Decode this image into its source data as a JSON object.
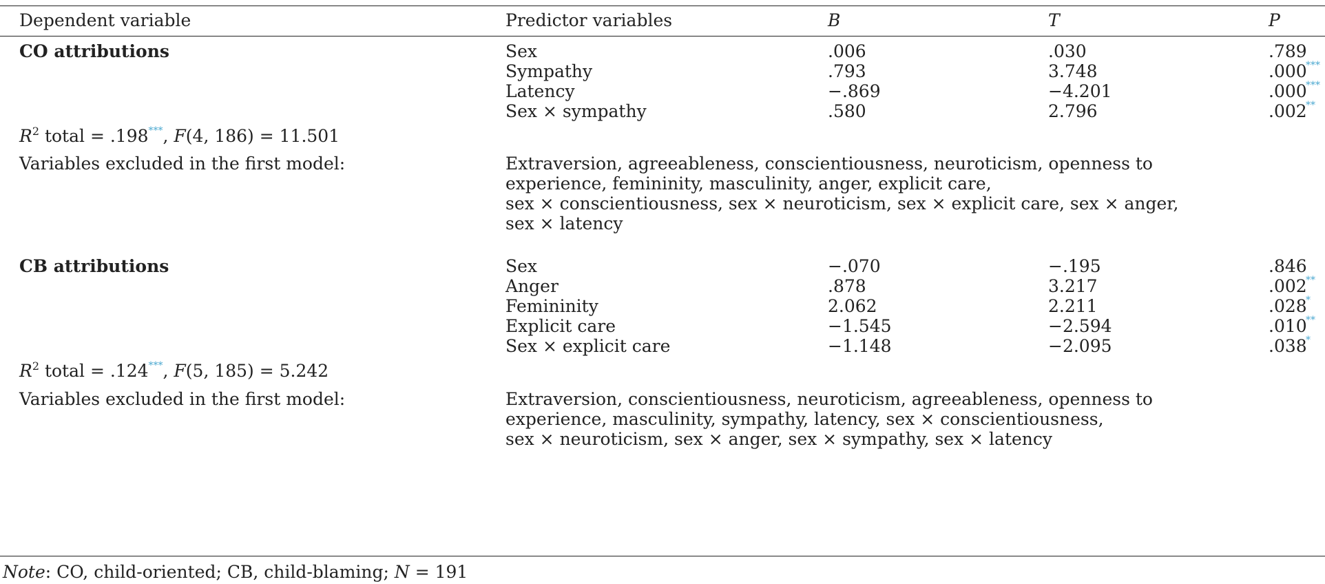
{
  "header": {
    "dependent": "Dependent variable",
    "predictor": "Predictor variables",
    "b": "B",
    "t": "T",
    "p": "P"
  },
  "co": {
    "title": "CO attributions",
    "rows": [
      {
        "predictor": "Sex",
        "b": ".006",
        "t": ".030",
        "p": ".789",
        "stars": ""
      },
      {
        "predictor": "Sympathy",
        "b": ".793",
        "t": "3.748",
        "p": ".000",
        "stars": "***"
      },
      {
        "predictor": "Latency",
        "b": "−.869",
        "t": "−4.201",
        "p": ".000",
        "stars": "***"
      },
      {
        "predictor": "Sex × sympathy",
        "b": ".580",
        "t": "2.796",
        "p": ".002",
        "stars": "**"
      }
    ],
    "r2": {
      "sup": "2",
      "rest": " total = .198",
      "stars": "***",
      "f_label": "F",
      "f_args": "(4, 186) = 11.501"
    },
    "excluded_label": "Variables excluded in the first model:",
    "excluded_lines": [
      "Extraversion, agreeableness, conscientiousness, neuroticism, openness to",
      "experience, femininity, masculinity, anger, explicit care,",
      "sex × conscientiousness, sex × neuroticism, sex × explicit care, sex × anger,",
      "sex × latency"
    ]
  },
  "cb": {
    "title": "CB attributions",
    "rows": [
      {
        "predictor": "Sex",
        "b": "−.070",
        "t": "−.195",
        "p": ".846",
        "stars": ""
      },
      {
        "predictor": "Anger",
        "b": ".878",
        "t": "3.217",
        "p": ".002",
        "stars": "**"
      },
      {
        "predictor": "Femininity",
        "b": "2.062",
        "t": "2.211",
        "p": ".028",
        "stars": "*"
      },
      {
        "predictor": "Explicit care",
        "b": "−1.545",
        "t": "−2.594",
        "p": ".010",
        "stars": "**"
      },
      {
        "predictor": "Sex × explicit care",
        "b": "−1.148",
        "t": "−2.095",
        "p": ".038",
        "stars": "*"
      }
    ],
    "r2": {
      "sup": "2",
      "rest": " total = .124",
      "stars": "***",
      "f_label": "F",
      "f_args": "(5, 185) = 5.242"
    },
    "excluded_label": "Variables excluded in the first model:",
    "excluded_lines": [
      "Extraversion, conscientiousness, neuroticism, agreeableness, openness to",
      "experience, masculinity, sympathy, latency, sex × conscientiousness,",
      "sex × neuroticism, sex × anger, sex × sympathy, sex × latency"
    ]
  },
  "note": {
    "label": "Note",
    "text": ": CO, child-oriented; CB, child-blaming; ",
    "n_label": "N",
    "n_value": " = 191"
  }
}
